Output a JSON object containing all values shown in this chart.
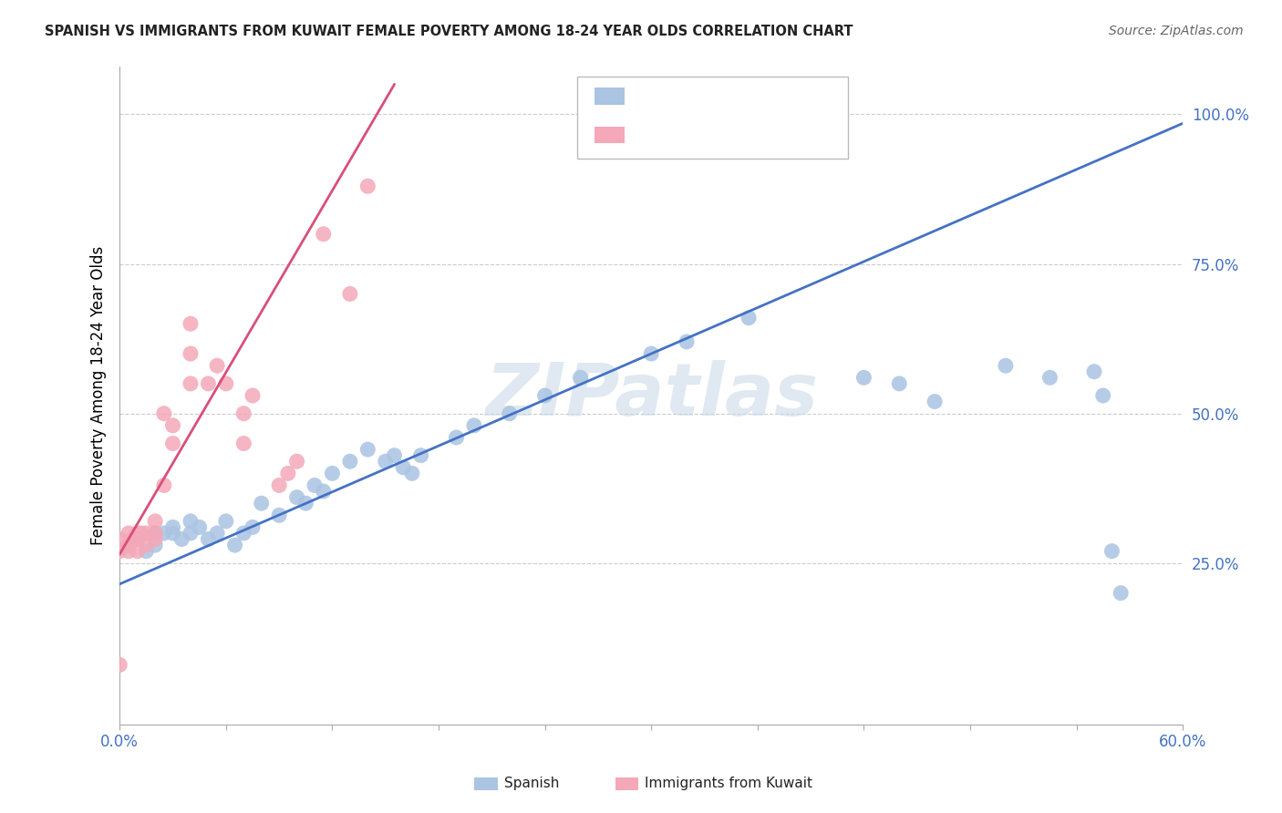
{
  "title": "SPANISH VS IMMIGRANTS FROM KUWAIT FEMALE POVERTY AMONG 18-24 YEAR OLDS CORRELATION CHART",
  "source": "Source: ZipAtlas.com",
  "ylabel": "Female Poverty Among 18-24 Year Olds",
  "xlim": [
    0.0,
    0.6
  ],
  "ylim": [
    -0.02,
    1.08
  ],
  "xticks": [
    0.0,
    0.06,
    0.12,
    0.18,
    0.24,
    0.3,
    0.36,
    0.42,
    0.48,
    0.54,
    0.6
  ],
  "xticklabels": [
    "0.0%",
    "",
    "",
    "",
    "",
    "",
    "",
    "",
    "",
    "",
    "60.0%"
  ],
  "ytick_positions": [
    0.0,
    0.25,
    0.5,
    0.75,
    1.0
  ],
  "yticklabels": [
    "",
    "25.0%",
    "50.0%",
    "75.0%",
    "100.0%"
  ],
  "legend_label_blue": "Spanish",
  "legend_label_pink": "Immigrants from Kuwait",
  "blue_color": "#aac4e2",
  "pink_color": "#f4a8b8",
  "trendline_blue_color": "#4472c4",
  "trendline_pink_color": "#d94f7a",
  "label_color": "#4472c4",
  "watermark": "ZIPatlas",
  "blue_trendline": [
    [
      0.0,
      0.215
    ],
    [
      0.6,
      0.985
    ]
  ],
  "pink_trendline": [
    [
      0.0,
      0.265
    ],
    [
      0.155,
      1.05
    ]
  ],
  "blue_x": [
    0.005,
    0.01,
    0.015,
    0.02,
    0.02,
    0.025,
    0.03,
    0.03,
    0.035,
    0.04,
    0.04,
    0.045,
    0.05,
    0.055,
    0.06,
    0.065,
    0.07,
    0.075,
    0.08,
    0.09,
    0.1,
    0.105,
    0.11,
    0.115,
    0.12,
    0.13,
    0.14,
    0.15,
    0.155,
    0.16,
    0.165,
    0.17,
    0.19,
    0.2,
    0.22,
    0.24,
    0.26,
    0.3,
    0.32,
    0.355,
    0.42,
    0.44,
    0.46,
    0.5,
    0.525,
    0.55,
    0.555,
    0.56,
    0.565
  ],
  "blue_y": [
    0.28,
    0.29,
    0.27,
    0.3,
    0.28,
    0.3,
    0.3,
    0.31,
    0.29,
    0.3,
    0.32,
    0.31,
    0.29,
    0.3,
    0.32,
    0.28,
    0.3,
    0.31,
    0.35,
    0.33,
    0.36,
    0.35,
    0.38,
    0.37,
    0.4,
    0.42,
    0.44,
    0.42,
    0.43,
    0.41,
    0.4,
    0.43,
    0.46,
    0.48,
    0.5,
    0.53,
    0.56,
    0.6,
    0.62,
    0.66,
    0.56,
    0.55,
    0.52,
    0.58,
    0.56,
    0.57,
    0.53,
    0.27,
    0.2
  ],
  "pink_x": [
    0.0,
    0.0,
    0.0,
    0.005,
    0.005,
    0.005,
    0.007,
    0.01,
    0.01,
    0.01,
    0.012,
    0.015,
    0.015,
    0.02,
    0.02,
    0.02,
    0.025,
    0.025,
    0.03,
    0.03,
    0.04,
    0.04,
    0.04,
    0.05,
    0.055,
    0.06,
    0.07,
    0.07,
    0.075,
    0.09,
    0.095,
    0.1,
    0.115,
    0.13,
    0.14
  ],
  "pink_y": [
    0.08,
    0.27,
    0.29,
    0.27,
    0.28,
    0.3,
    0.29,
    0.27,
    0.29,
    0.3,
    0.3,
    0.28,
    0.3,
    0.29,
    0.32,
    0.3,
    0.38,
    0.5,
    0.45,
    0.48,
    0.55,
    0.6,
    0.65,
    0.55,
    0.58,
    0.55,
    0.45,
    0.5,
    0.53,
    0.38,
    0.4,
    0.42,
    0.8,
    0.7,
    0.88
  ]
}
